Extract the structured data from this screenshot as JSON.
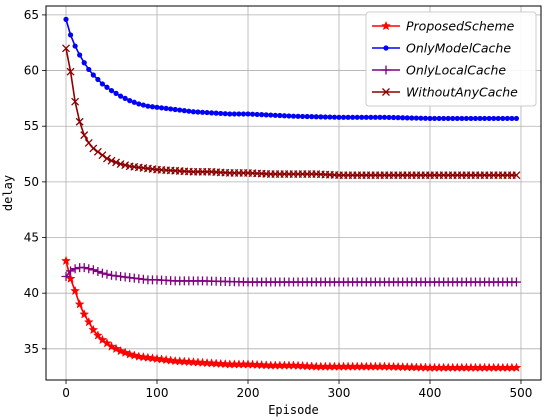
{
  "chart_data": {
    "type": "line",
    "title": "",
    "xlabel": "Episode",
    "ylabel": "delay",
    "xlim": [
      -22,
      522
    ],
    "ylim": [
      32.2,
      65.8
    ],
    "xticks": [
      0,
      100,
      200,
      300,
      400,
      500
    ],
    "yticks": [
      35,
      40,
      45,
      50,
      55,
      60,
      65
    ],
    "grid": true,
    "legend_position": "top-right",
    "series": [
      {
        "name": "ProposedScheme",
        "color": "#ff0000",
        "marker": "star",
        "x": [
          0,
          5,
          10,
          15,
          20,
          25,
          30,
          35,
          40,
          45,
          50,
          60,
          70,
          80,
          90,
          100,
          120,
          140,
          160,
          180,
          200,
          225,
          250,
          275,
          300,
          350,
          400,
          450,
          495
        ],
        "y": [
          42.9,
          41.3,
          40.2,
          39.0,
          38.1,
          37.4,
          36.7,
          36.2,
          35.8,
          35.5,
          35.2,
          34.8,
          34.5,
          34.3,
          34.2,
          34.1,
          33.9,
          33.8,
          33.7,
          33.6,
          33.6,
          33.5,
          33.5,
          33.4,
          33.4,
          33.4,
          33.3,
          33.3,
          33.3
        ]
      },
      {
        "name": "OnlyModelCache",
        "color": "#0000ff",
        "marker": "dot",
        "x": [
          0,
          5,
          10,
          15,
          20,
          25,
          30,
          40,
          50,
          60,
          70,
          80,
          90,
          100,
          120,
          140,
          160,
          180,
          200,
          250,
          300,
          350,
          400,
          450,
          495
        ],
        "y": [
          64.6,
          63.2,
          62.2,
          61.4,
          60.7,
          60.1,
          59.6,
          58.8,
          58.2,
          57.7,
          57.3,
          57.0,
          56.8,
          56.7,
          56.5,
          56.3,
          56.2,
          56.1,
          56.1,
          55.9,
          55.8,
          55.8,
          55.7,
          55.7,
          55.7
        ]
      },
      {
        "name": "OnlyLocalCache",
        "color": "#800080",
        "marker": "plus",
        "x": [
          0,
          5,
          10,
          15,
          20,
          25,
          30,
          40,
          50,
          60,
          70,
          80,
          90,
          100,
          120,
          150,
          200,
          250,
          300,
          400,
          495
        ],
        "y": [
          41.5,
          42.0,
          42.2,
          42.3,
          42.3,
          42.2,
          42.1,
          41.8,
          41.6,
          41.5,
          41.4,
          41.3,
          41.2,
          41.2,
          41.1,
          41.1,
          41.0,
          41.0,
          41.0,
          41.0,
          41.0
        ]
      },
      {
        "name": "WithoutAnyCache",
        "color": "#8b0000",
        "marker": "x",
        "x": [
          0,
          5,
          10,
          15,
          20,
          25,
          30,
          35,
          40,
          45,
          50,
          60,
          70,
          80,
          90,
          100,
          120,
          140,
          160,
          180,
          200,
          225,
          250,
          275,
          300,
          350,
          400,
          450,
          495
        ],
        "y": [
          62.0,
          59.9,
          57.2,
          55.4,
          54.2,
          53.5,
          53.0,
          52.7,
          52.4,
          52.1,
          51.9,
          51.6,
          51.4,
          51.3,
          51.2,
          51.1,
          51.0,
          50.9,
          50.9,
          50.8,
          50.8,
          50.7,
          50.7,
          50.7,
          50.6,
          50.6,
          50.6,
          50.6,
          50.6
        ]
      }
    ]
  }
}
